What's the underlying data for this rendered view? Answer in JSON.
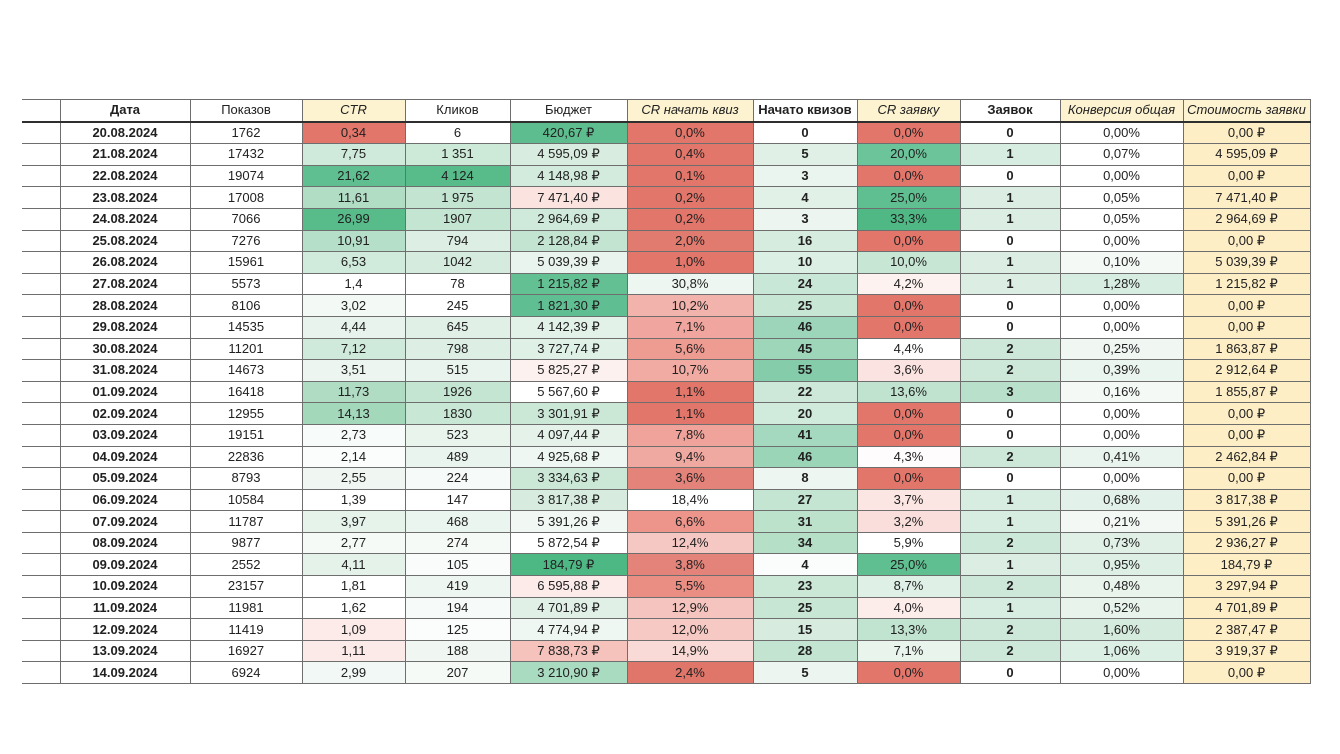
{
  "table": {
    "columns": [
      {
        "key": "date",
        "label": "Дата",
        "bold": true,
        "italic": false,
        "header_bg": "#ffffff"
      },
      {
        "key": "shows",
        "label": "Показов",
        "bold": false,
        "italic": false,
        "header_bg": "#ffffff"
      },
      {
        "key": "ctr",
        "label": "CTR",
        "bold": false,
        "italic": true,
        "header_bg": "#fdf3d1"
      },
      {
        "key": "clicks",
        "label": "Кликов",
        "bold": false,
        "italic": false,
        "header_bg": "#ffffff"
      },
      {
        "key": "budget",
        "label": "Бюджет",
        "bold": false,
        "italic": false,
        "header_bg": "#ffffff"
      },
      {
        "key": "cr_quiz_start",
        "label": "CR начать квиз",
        "bold": false,
        "italic": true,
        "header_bg": "#fdf3d1"
      },
      {
        "key": "quiz_started",
        "label": "Начато квизов",
        "bold": true,
        "italic": false,
        "header_bg": "#ffffff"
      },
      {
        "key": "cr_lead",
        "label": "CR заявку",
        "bold": false,
        "italic": true,
        "header_bg": "#fdf3d1"
      },
      {
        "key": "leads",
        "label": "Заявок",
        "bold": true,
        "italic": false,
        "header_bg": "#ffffff"
      },
      {
        "key": "conversion_total",
        "label": "Конверсия общая",
        "bold": false,
        "italic": true,
        "header_bg": "#fdf3d1"
      },
      {
        "key": "cost_per_lead",
        "label": "Стоимость заявки",
        "bold": false,
        "italic": true,
        "header_bg": "#fdf3d1"
      }
    ],
    "colors": {
      "negative": "#e3766b",
      "positive": "#57bb8a",
      "cost_column": "#fdeec6",
      "header_yellow": "#fdf3d1"
    },
    "rows": [
      {
        "cells": [
          "20.08.2024",
          "1762",
          "0,34",
          "6",
          "420,67 ₽",
          "0,0%",
          "0",
          "0,0%",
          "0",
          "0,00%",
          "0,00 ₽"
        ],
        "bg": [
          "",
          "",
          "#e3766b",
          "",
          "#5dbd8e",
          "#e3766b",
          "",
          "#e3766b",
          "",
          "",
          "#fdeec6"
        ]
      },
      {
        "cells": [
          "21.08.2024",
          "17432",
          "7,75",
          "1 351",
          "4 595,09 ₽",
          "0,4%",
          "5",
          "20,0%",
          "1",
          "0,07%",
          "4 595,09 ₽"
        ],
        "bg": [
          "",
          "",
          "#cfe9da",
          "#cde9d8",
          "#d8ecdf",
          "#e3766b",
          "#e0f0e7",
          "#6cc49a",
          "#d8ede1",
          "",
          "#fdeec6"
        ]
      },
      {
        "cells": [
          "22.08.2024",
          "19074",
          "21,62",
          "4 124",
          "4 148,98 ₽",
          "0,1%",
          "3",
          "0,0%",
          "0",
          "0,00%",
          "0,00 ₽"
        ],
        "bg": [
          "",
          "",
          "#5fbf90",
          "#57bb8a",
          "#d3ebdc",
          "#e3766b",
          "#eaf5ef",
          "#e3766b",
          "",
          "",
          "#fdeec6"
        ]
      },
      {
        "cells": [
          "23.08.2024",
          "17008",
          "11,61",
          "1 975",
          "7 471,40 ₽",
          "0,2%",
          "4",
          "25,0%",
          "1",
          "0,05%",
          "7 471,40 ₽"
        ],
        "bg": [
          "",
          "",
          "#b1ddc5",
          "#c3e4d1",
          "#fbe3e0",
          "#e3766b",
          "#e2f1e8",
          "#60bf91",
          "#dceee4",
          "",
          "#fdeec6"
        ]
      },
      {
        "cells": [
          "24.08.2024",
          "7066",
          "26,99",
          "1907",
          "2 964,69 ₽",
          "0,2%",
          "3",
          "33,3%",
          "1",
          "0,05%",
          "2 964,69 ₽"
        ],
        "bg": [
          "",
          "",
          "#57bb8a",
          "#c5e5d3",
          "#cfe9da",
          "#e3766b",
          "#ecf5f0",
          "#4fb885",
          "#dceee4",
          "",
          "#fdeec6"
        ]
      },
      {
        "cells": [
          "25.08.2024",
          "7276",
          "10,91",
          "794",
          "2 128,84 ₽",
          "2,0%",
          "16",
          "0,0%",
          "0",
          "0,00%",
          "0,00 ₽"
        ],
        "bg": [
          "",
          "",
          "#b5dfc8",
          "#ddefe5",
          "#c3e4d1",
          "#e17b6f",
          "#d5ecde",
          "#e3766b",
          "",
          "",
          "#fdeec6"
        ]
      },
      {
        "cells": [
          "26.08.2024",
          "15961",
          "6,53",
          "1042",
          "5 039,39 ₽",
          "1,0%",
          "10",
          "10,0%",
          "1",
          "0,10%",
          "5 039,39 ₽"
        ],
        "bg": [
          "",
          "",
          "#d0eadb",
          "#d4ebdd",
          "#e8f4ed",
          "#e3766b",
          "#dcefe4",
          "#c7e6d4",
          "#dceee4",
          "#f4f9f6",
          "#fdeec6"
        ]
      },
      {
        "cells": [
          "27.08.2024",
          "5573",
          "1,4",
          "78",
          "1 215,82 ₽",
          "30,8%",
          "24",
          "4,2%",
          "1",
          "1,28%",
          "1 215,82 ₽"
        ],
        "bg": [
          "",
          "",
          "",
          "",
          "#62c093",
          "#eef6f1",
          "#c9e7d6",
          "#fdf2f0",
          "#dceee4",
          "#d8ede1",
          "#fdeec6"
        ]
      },
      {
        "cells": [
          "28.08.2024",
          "8106",
          "3,02",
          "245",
          "1 821,30 ₽",
          "10,2%",
          "25",
          "0,0%",
          "0",
          "0,00%",
          "0,00 ₽"
        ],
        "bg": [
          "",
          "",
          "#f3f9f5",
          "",
          "#60bf92",
          "#f2b3ac",
          "#c7e6d4",
          "#e3766b",
          "",
          "",
          "#fdeec6"
        ]
      },
      {
        "cells": [
          "29.08.2024",
          "14535",
          "4,44",
          "645",
          "4 142,39 ₽",
          "7,1%",
          "46",
          "0,0%",
          "0",
          "0,00%",
          "0,00 ₽"
        ],
        "bg": [
          "",
          "",
          "#e7f3ec",
          "#e0f0e7",
          "#e3f2e9",
          "#f0a69e",
          "#9cd5b9",
          "#e3766b",
          "",
          "",
          "#fdeec6"
        ]
      },
      {
        "cells": [
          "30.08.2024",
          "11201",
          "7,12",
          "798",
          "3 727,74 ₽",
          "5,6%",
          "45",
          "4,4%",
          "2",
          "0,25%",
          "1 863,87 ₽"
        ],
        "bg": [
          "",
          "",
          "#cfe9da",
          "#ddefe5",
          "#dff0e7",
          "#ee9b92",
          "#9ed6ba",
          "",
          "#cde8d9",
          "#f0f7f3",
          "#fdeec6"
        ]
      },
      {
        "cells": [
          "31.08.2024",
          "14673",
          "3,51",
          "515",
          "5 825,27 ₽",
          "10,7%",
          "55",
          "3,6%",
          "2",
          "0,39%",
          "2 912,64 ₽"
        ],
        "bg": [
          "",
          "",
          "#ecf5f0",
          "#e9f4ee",
          "#fdf1ef",
          "#f1aba3",
          "#85ccaa",
          "#fae3e0",
          "#cde8d9",
          "#ebf5ef",
          "#fdeec6"
        ]
      },
      {
        "cells": [
          "01.09.2024",
          "16418",
          "11,73",
          "1926",
          "5 567,60 ₽",
          "1,1%",
          "22",
          "13,6%",
          "3",
          "0,16%",
          "1 855,87 ₽"
        ],
        "bg": [
          "",
          "",
          "#b0dcc4",
          "#c4e5d2",
          "",
          "#e3766b",
          "#cde8d8",
          "#c0e3cf",
          "#b9e0ca",
          "#f4f9f6",
          "#fdeec6"
        ]
      },
      {
        "cells": [
          "02.09.2024",
          "12955",
          "14,13",
          "1830",
          "3 301,91 ₽",
          "1,1%",
          "20",
          "0,0%",
          "0",
          "0,00%",
          "0,00 ₽"
        ],
        "bg": [
          "",
          "",
          "#a3d8bb",
          "#c8e7d5",
          "#cbe8d7",
          "#e3766b",
          "#d0eadb",
          "#e3766b",
          "",
          "",
          "#fdeec6"
        ]
      },
      {
        "cells": [
          "03.09.2024",
          "19151",
          "2,73",
          "523",
          "4 097,44 ₽",
          "7,8%",
          "41",
          "0,0%",
          "0",
          "0,00%",
          "0,00 ₽"
        ],
        "bg": [
          "",
          "",
          "#f7fbf9",
          "#e9f4ed",
          "#e4f2ea",
          "#f0a39b",
          "#a5d9bf",
          "#e3766b",
          "",
          "",
          "#fdeec6"
        ]
      },
      {
        "cells": [
          "04.09.2024",
          "22836",
          "2,14",
          "489",
          "4 925,68 ₽",
          "9,4%",
          "46",
          "4,3%",
          "2",
          "0,41%",
          "2 462,84 ₽"
        ],
        "bg": [
          "",
          "",
          "#fbfdfc",
          "#eaf4ee",
          "#eff7f2",
          "#f0a9a1",
          "#9bd5b8",
          "#fefcfc",
          "#cde8d9",
          "#eaf4ee",
          "#fdeec6"
        ]
      },
      {
        "cells": [
          "05.09.2024",
          "8793",
          "2,55",
          "224",
          "3 334,63 ₽",
          "3,6%",
          "8",
          "0,0%",
          "0",
          "0,00%",
          "0,00 ₽"
        ],
        "bg": [
          "",
          "",
          "#f0f7f3",
          "#f6faf8",
          "#cbe8d7",
          "#e3837a",
          "#eef6f1",
          "#e3766b",
          "",
          "",
          "#fdeec6"
        ]
      },
      {
        "cells": [
          "06.09.2024",
          "10584",
          "1,39",
          "147",
          "3 817,38 ₽",
          "18,4%",
          "27",
          "3,7%",
          "1",
          "0,68%",
          "3 817,38 ₽"
        ],
        "bg": [
          "",
          "",
          "",
          "",
          "#d7ecdf",
          "",
          "#c4e5d2",
          "#fbe6e3",
          "#d8ede1",
          "#e2f1e9",
          "#fdeec6"
        ]
      },
      {
        "cells": [
          "07.09.2024",
          "11787",
          "3,97",
          "468",
          "5 391,26 ₽",
          "6,6%",
          "31",
          "3,2%",
          "1",
          "0,21%",
          "5 391,26 ₽"
        ],
        "bg": [
          "",
          "",
          "#e6f3eb",
          "#ebf5ef",
          "#f1f8f4",
          "#ed948b",
          "#bce2cc",
          "#f9dedb",
          "#d8ede1",
          "#f3f8f5",
          "#fdeec6"
        ]
      },
      {
        "cells": [
          "08.09.2024",
          "9877",
          "2,77",
          "274",
          "5 872,54 ₽",
          "12,4%",
          "34",
          "5,9%",
          "2",
          "0,73%",
          "2 936,27 ₽"
        ],
        "bg": [
          "",
          "",
          "#f5faf7",
          "#f5faf7",
          "",
          "#f6c8c3",
          "#b5dfc7",
          "",
          "#cce8d8",
          "#e0f0e7",
          "#fdeec6"
        ]
      },
      {
        "cells": [
          "09.09.2024",
          "2552",
          "4,11",
          "105",
          "184,79 ₽",
          "3,8%",
          "4",
          "25,0%",
          "1",
          "0,95%",
          "184,79 ₽"
        ],
        "bg": [
          "",
          "",
          "#e5f2ea",
          "#fafcfb",
          "#4eb885",
          "#e3837a",
          "#fbfdfc",
          "#5fbf90",
          "#dceee4",
          "#def0e6",
          "#fdeec6"
        ]
      },
      {
        "cells": [
          "10.09.2024",
          "23157",
          "1,81",
          "419",
          "6 595,88 ₽",
          "5,5%",
          "23",
          "8,7%",
          "2",
          "0,48%",
          "3 297,94 ₽"
        ],
        "bg": [
          "",
          "",
          "",
          "#edf6f0",
          "#fcebe9",
          "#ea8d83",
          "#cbe8d7",
          "#dff0e7",
          "#cde8d9",
          "#e8f4ec",
          "#fdeec6"
        ]
      },
      {
        "cells": [
          "11.09.2024",
          "11981",
          "1,62",
          "194",
          "4 701,89 ₽",
          "12,9%",
          "25",
          "4,0%",
          "1",
          "0,52%",
          "4 701,89 ₽"
        ],
        "bg": [
          "",
          "",
          "",
          "#f6faf8",
          "#e0f0e7",
          "#f5c4be",
          "#c7e6d4",
          "#fcedeb",
          "#d8ede1",
          "#e7f3eb",
          "#fdeec6"
        ]
      },
      {
        "cells": [
          "12.09.2024",
          "11419",
          "1,09",
          "125",
          "4 774,94 ₽",
          "12,0%",
          "15",
          "13,3%",
          "2",
          "1,60%",
          "2 387,47 ₽"
        ],
        "bg": [
          "",
          "",
          "#fcebe9",
          "#fbfdfc",
          "#eff7f2",
          "#f6c9c4",
          "#d7ecdf",
          "#c1e4d0",
          "#cde8d9",
          "#d5ebde",
          "#fdeec6"
        ]
      },
      {
        "cells": [
          "13.09.2024",
          "16927",
          "1,11",
          "188",
          "7 838,73 ₽",
          "14,9%",
          "28",
          "7,1%",
          "2",
          "1,06%",
          "3 919,37 ₽"
        ],
        "bg": [
          "",
          "",
          "#fceae8",
          "#f0f7f3",
          "#f5c2bc",
          "#f9dad6",
          "#c2e4d1",
          "#e9f4ed",
          "#cde8d9",
          "#dcefe4",
          "#fdeec6"
        ]
      },
      {
        "cells": [
          "14.09.2024",
          "6924",
          "2,99",
          "207",
          "3 210,90 ₽",
          "2,4%",
          "5",
          "0,0%",
          "0",
          "0,00%",
          "0,00 ₽"
        ],
        "bg": [
          "",
          "",
          "#f2f8f5",
          "#f5faf7",
          "#a9dbc1",
          "#e0756a",
          "#ecf5f0",
          "#e3766b",
          "",
          "",
          "#fdeec6"
        ]
      }
    ]
  }
}
